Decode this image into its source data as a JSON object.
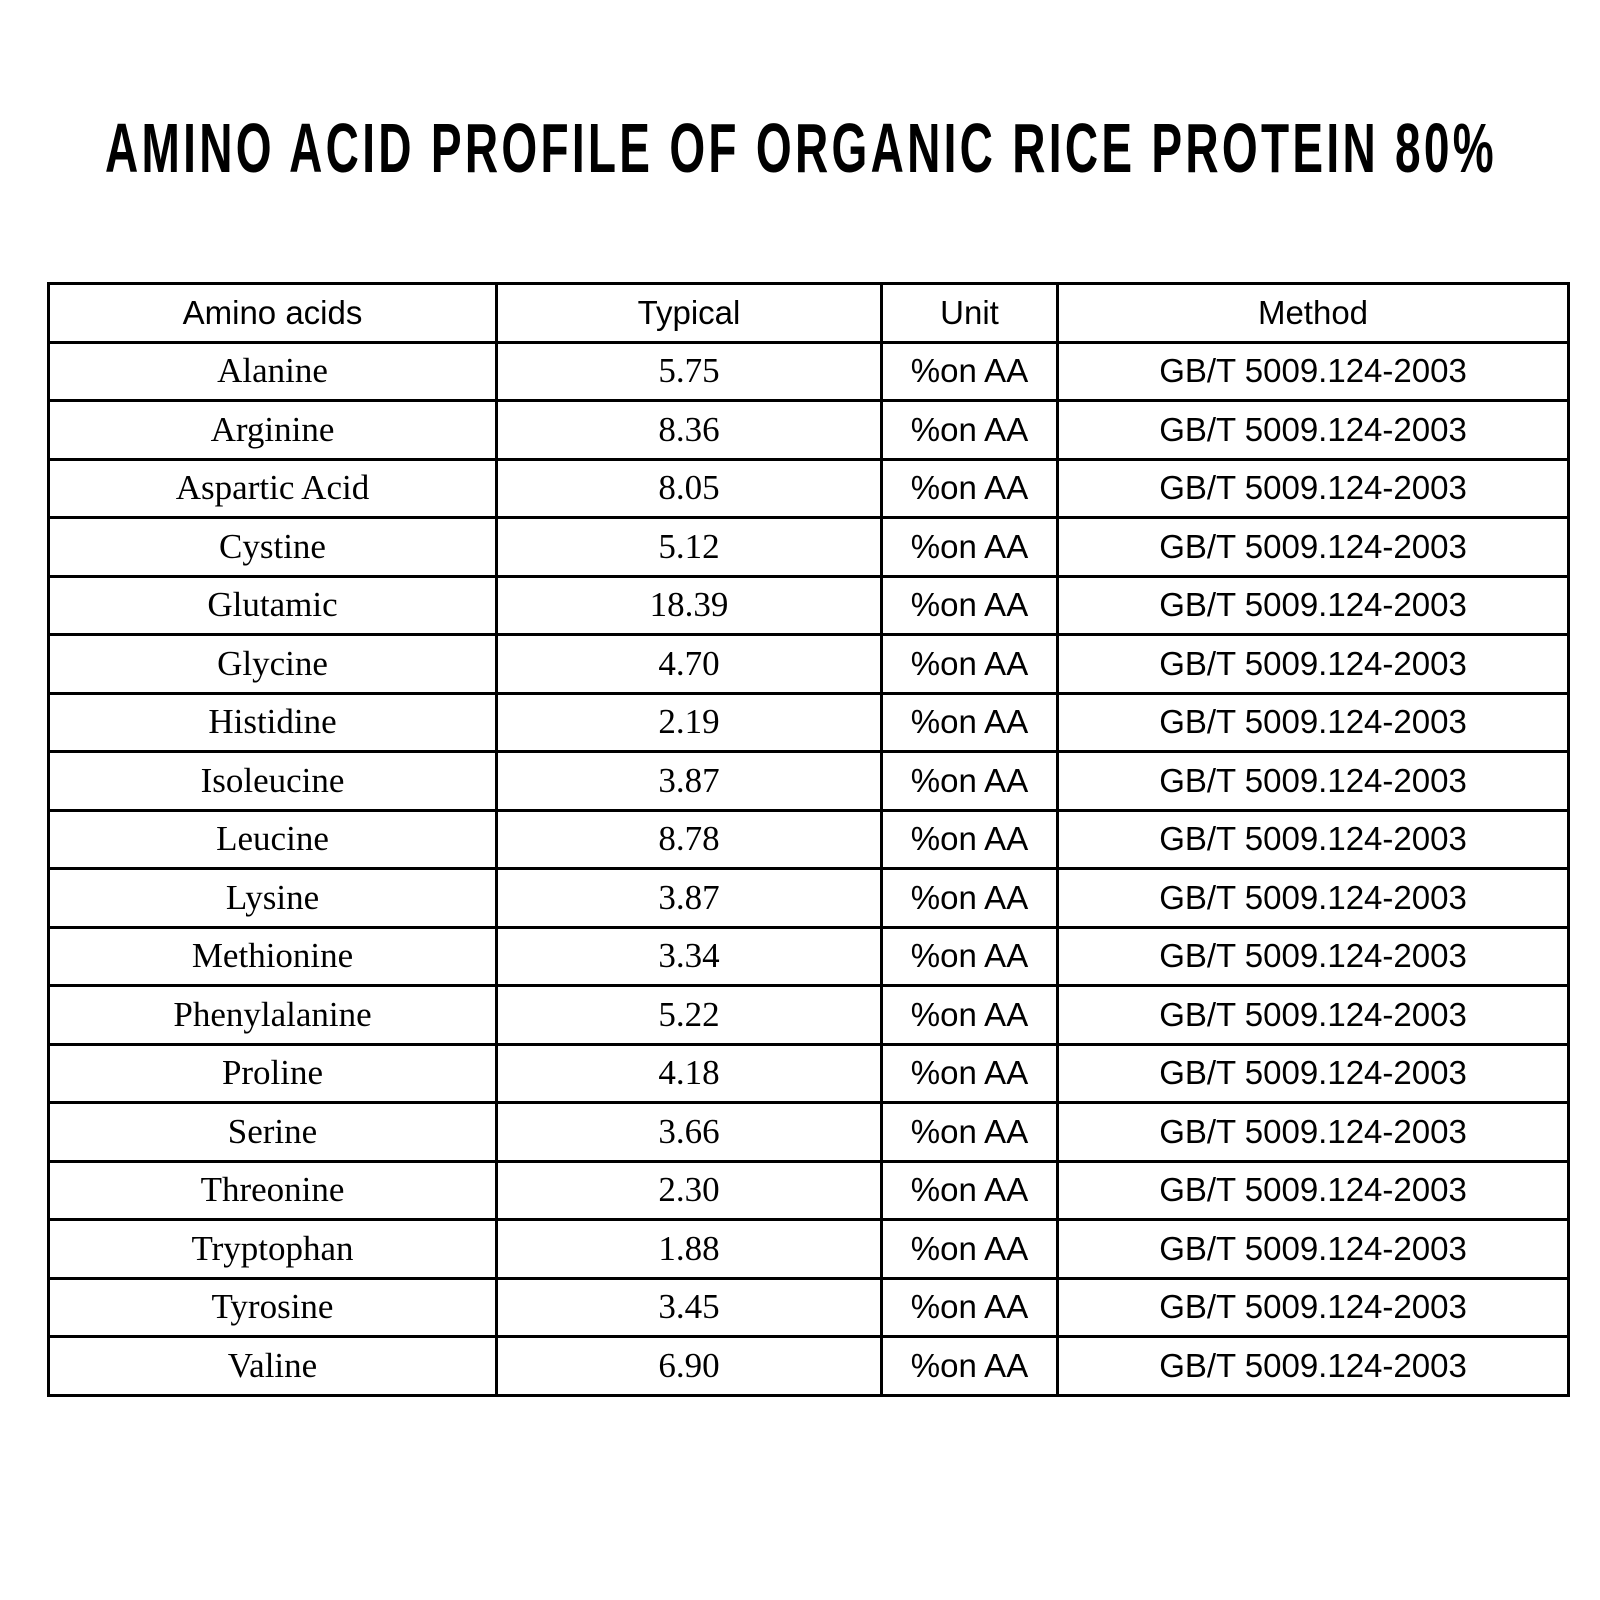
{
  "title": "AMINO ACID PROFILE OF ORGANIC RICE PROTEIN 80%",
  "colors": {
    "text": "#000000",
    "background": "#ffffff",
    "table_border": "#000000"
  },
  "table": {
    "headers": [
      "Amino acids",
      "Typical",
      "Unit",
      "Method"
    ],
    "rows": [
      [
        "Alanine",
        "5.75",
        "%on AA",
        "GB/T 5009.124-2003"
      ],
      [
        "Arginine",
        "8.36",
        "%on AA",
        "GB/T 5009.124-2003"
      ],
      [
        "Aspartic Acid",
        "8.05",
        "%on AA",
        "GB/T 5009.124-2003"
      ],
      [
        "Cystine",
        "5.12",
        "%on AA",
        "GB/T 5009.124-2003"
      ],
      [
        "Glutamic",
        "18.39",
        "%on AA",
        "GB/T 5009.124-2003"
      ],
      [
        "Glycine",
        "4.70",
        "%on AA",
        "GB/T 5009.124-2003"
      ],
      [
        "Histidine",
        "2.19",
        "%on AA",
        "GB/T 5009.124-2003"
      ],
      [
        "Isoleucine",
        "3.87",
        "%on AA",
        "GB/T 5009.124-2003"
      ],
      [
        "Leucine",
        "8.78",
        "%on AA",
        "GB/T 5009.124-2003"
      ],
      [
        "Lysine",
        "3.87",
        "%on AA",
        "GB/T 5009.124-2003"
      ],
      [
        "Methionine",
        "3.34",
        "%on AA",
        "GB/T 5009.124-2003"
      ],
      [
        "Phenylalanine",
        "5.22",
        "%on AA",
        "GB/T 5009.124-2003"
      ],
      [
        "Proline",
        "4.18",
        "%on AA",
        "GB/T 5009.124-2003"
      ],
      [
        "Serine",
        "3.66",
        "%on AA",
        "GB/T 5009.124-2003"
      ],
      [
        "Threonine",
        "2.30",
        "%on AA",
        "GB/T 5009.124-2003"
      ],
      [
        "Tryptophan",
        "1.88",
        "%on AA",
        "GB/T 5009.124-2003"
      ],
      [
        "Tyrosine",
        "3.45",
        "%on AA",
        "GB/T 5009.124-2003"
      ],
      [
        "Valine",
        "6.90",
        "%on AA",
        "GB/T 5009.124-2003"
      ]
    ],
    "column_semantics": [
      "amino-acid",
      "typical",
      "unit",
      "method"
    ]
  }
}
